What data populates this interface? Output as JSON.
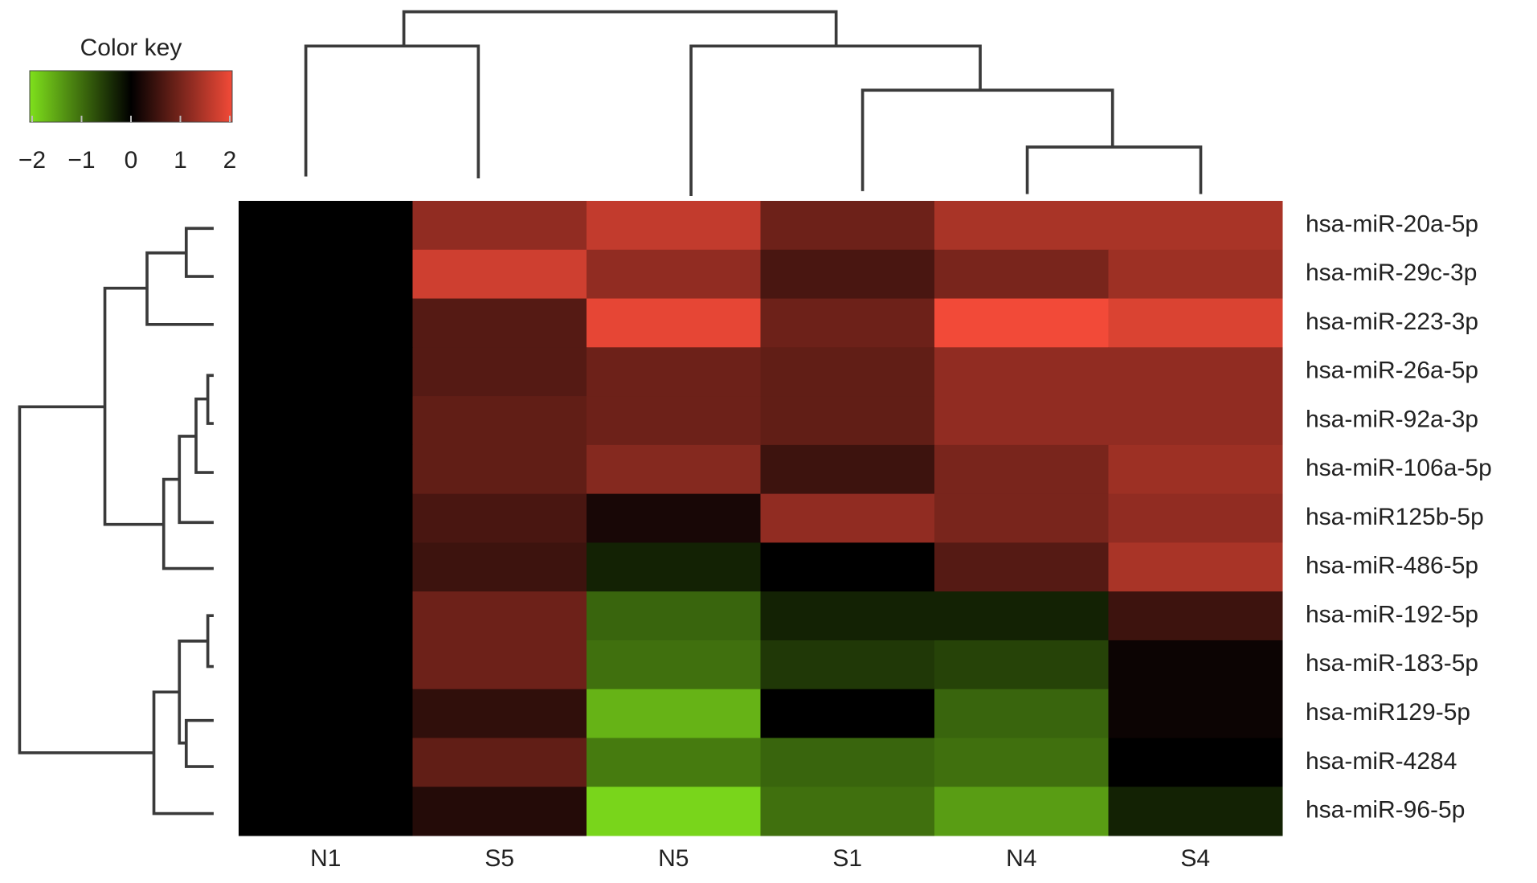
{
  "chart_data": {
    "type": "heatmap",
    "columns": [
      "N1",
      "S5",
      "N5",
      "S1",
      "N4",
      "S4"
    ],
    "rows": [
      "hsa-miR-20a-5p",
      "hsa-miR-29c-3p",
      "hsa-miR-223-3p",
      "hsa-miR-26a-5p",
      "hsa-miR-92a-3p",
      "hsa-miR-106a-5p",
      "hsa-miR125b-5p",
      "hsa-miR-486-5p",
      "hsa-miR-192-5p",
      "hsa-miR-183-5p",
      "hsa-miR129-5p",
      "hsa-miR-4284",
      "hsa-miR-96-5p"
    ],
    "values": [
      [
        0,
        1.2,
        1.6,
        0.9,
        1.4,
        1.4
      ],
      [
        0,
        1.7,
        1.2,
        0.6,
        1.0,
        1.3
      ],
      [
        0,
        0.7,
        1.9,
        0.9,
        2.0,
        1.8
      ],
      [
        0,
        0.7,
        0.9,
        0.8,
        1.2,
        1.2
      ],
      [
        0,
        0.8,
        0.9,
        0.8,
        1.2,
        1.2
      ],
      [
        0,
        0.8,
        1.1,
        0.5,
        1.0,
        1.3
      ],
      [
        0,
        0.6,
        0.2,
        1.2,
        1.0,
        1.2
      ],
      [
        0,
        0.5,
        -0.3,
        0,
        0.7,
        1.4
      ],
      [
        0,
        0.9,
        -0.9,
        -0.3,
        -0.3,
        0.5
      ],
      [
        0,
        0.9,
        -1.0,
        -0.5,
        -0.6,
        0.1
      ],
      [
        0,
        0.4,
        -1.6,
        0,
        -0.9,
        0.1
      ],
      [
        0,
        0.8,
        -1.1,
        -0.9,
        -1.0,
        0
      ],
      [
        0,
        0.3,
        -1.9,
        -1.0,
        -1.4,
        -0.3
      ]
    ],
    "color_key": {
      "title": "Color key",
      "lim": [
        -2,
        2
      ],
      "ticks": [
        {
          "value": -2,
          "label": "−2"
        },
        {
          "value": -1,
          "label": "−1"
        },
        0,
        1,
        2
      ],
      "low_color": "#7fe01c",
      "mid_color": "#000000",
      "high_color": "#f24a38"
    }
  }
}
